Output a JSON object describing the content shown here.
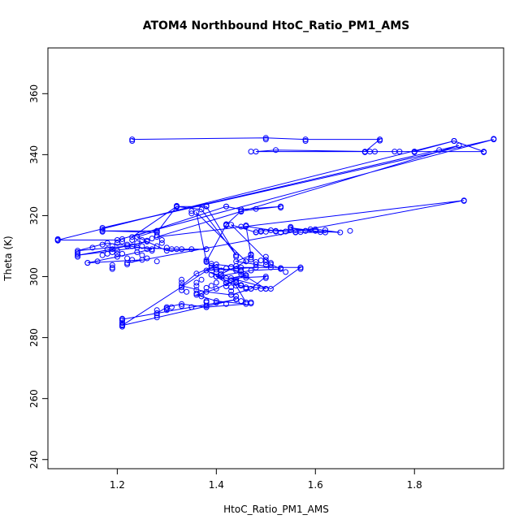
{
  "chart_data": {
    "type": "scatter",
    "title": "ATOM4 Northbound HtoC_Ratio_PM1_AMS",
    "xlabel": "HtoC_Ratio_PM1_AMS",
    "ylabel": "Theta (K)",
    "xlim": [
      1.06,
      1.98
    ],
    "ylim": [
      237,
      375
    ],
    "xticks": [
      1.2,
      1.4,
      1.6,
      1.8
    ],
    "yticks": [
      240,
      260,
      280,
      300,
      320,
      340,
      360
    ],
    "grid": false,
    "legend": "none",
    "series_color": "#0000ff",
    "series": [
      {
        "style": "lines+points",
        "points": [
          [
            1.23,
            345
          ],
          [
            1.5,
            345.5
          ],
          [
            1.58,
            345
          ],
          [
            1.73,
            345
          ],
          [
            1.7,
            341
          ],
          [
            1.48,
            341
          ],
          [
            1.52,
            341.5
          ],
          [
            1.72,
            341
          ],
          [
            1.76,
            341
          ],
          [
            1.8,
            341
          ],
          [
            1.88,
            344.5
          ],
          [
            1.94,
            341
          ],
          [
            1.8,
            341
          ],
          [
            1.88,
            344.5
          ],
          [
            1.08,
            312
          ],
          [
            1.2,
            312
          ],
          [
            1.96,
            345
          ],
          [
            1.17,
            316
          ],
          [
            1.89,
            343
          ],
          [
            1.28,
            313
          ],
          [
            1.9,
            325
          ],
          [
            1.22,
            304.5
          ],
          [
            1.25,
            305.5
          ],
          [
            1.14,
            304.5
          ],
          [
            1.2,
            306.5
          ],
          [
            1.27,
            309
          ],
          [
            1.18,
            311
          ],
          [
            1.12,
            308.5
          ],
          [
            1.22,
            310
          ],
          [
            1.26,
            311.5
          ],
          [
            1.19,
            309
          ],
          [
            1.12,
            307
          ],
          [
            1.24,
            309.5
          ],
          [
            1.32,
            309
          ],
          [
            1.38,
            309
          ],
          [
            1.3,
            308.5
          ],
          [
            1.24,
            313
          ],
          [
            1.28,
            315
          ],
          [
            1.17,
            315
          ],
          [
            1.28,
            314.5
          ],
          [
            1.32,
            323
          ],
          [
            1.38,
            323
          ],
          [
            1.44,
            307
          ],
          [
            1.37,
            322
          ],
          [
            1.32,
            323
          ],
          [
            1.23,
            313
          ],
          [
            1.42,
            323
          ],
          [
            1.45,
            322
          ],
          [
            1.53,
            323
          ],
          [
            1.45,
            321.5
          ],
          [
            1.42,
            317
          ],
          [
            1.38,
            305
          ],
          [
            1.36,
            321
          ],
          [
            1.46,
            305
          ],
          [
            1.4,
            300
          ],
          [
            1.42,
            298
          ],
          [
            1.45,
            297
          ],
          [
            1.5,
            296
          ],
          [
            1.44,
            302
          ],
          [
            1.39,
            303
          ],
          [
            1.36,
            301
          ],
          [
            1.33,
            297
          ],
          [
            1.38,
            295
          ],
          [
            1.43,
            294
          ],
          [
            1.47,
            296
          ],
          [
            1.5,
            300
          ],
          [
            1.43,
            299.5
          ],
          [
            1.46,
            300.5
          ],
          [
            1.4,
            296
          ],
          [
            1.36,
            294
          ],
          [
            1.4,
            292
          ],
          [
            1.46,
            291
          ],
          [
            1.38,
            290
          ],
          [
            1.33,
            291
          ],
          [
            1.3,
            290
          ],
          [
            1.28,
            288
          ],
          [
            1.21,
            286
          ],
          [
            1.35,
            290
          ],
          [
            1.44,
            292.5
          ],
          [
            1.21,
            284
          ],
          [
            1.4,
            304
          ],
          [
            1.45,
            303
          ],
          [
            1.51,
            303
          ],
          [
            1.48,
            304
          ],
          [
            1.44,
            305
          ],
          [
            1.47,
            307
          ],
          [
            1.46,
            316.5
          ],
          [
            1.52,
            315
          ],
          [
            1.56,
            314.5
          ],
          [
            1.62,
            314.5
          ],
          [
            1.55,
            316
          ],
          [
            1.58,
            315
          ],
          [
            1.65,
            314.5
          ],
          [
            1.6,
            315.5
          ],
          [
            1.49,
            315
          ],
          [
            1.48,
            314.5
          ],
          [
            1.43,
            317
          ],
          [
            1.51,
            304
          ],
          [
            1.53,
            302.5
          ],
          [
            1.47,
            302
          ],
          [
            1.4,
            300
          ],
          [
            1.44,
            299
          ],
          [
            1.51,
            296
          ],
          [
            1.57,
            303
          ],
          [
            1.48,
            303
          ],
          [
            1.38,
            302
          ],
          [
            1.44,
            297
          ],
          [
            1.46,
            291.5
          ]
        ]
      },
      {
        "style": "points",
        "points": [
          [
            1.23,
            344.5
          ],
          [
            1.5,
            345
          ],
          [
            1.58,
            344.5
          ],
          [
            1.73,
            344.6
          ],
          [
            1.7,
            340.8
          ],
          [
            1.71,
            341
          ],
          [
            1.47,
            341
          ],
          [
            1.77,
            341
          ],
          [
            1.8,
            340.8
          ],
          [
            1.94,
            340.8
          ],
          [
            1.96,
            345.2
          ],
          [
            1.88,
            344.5
          ],
          [
            1.08,
            312.3
          ],
          [
            1.08,
            311.8
          ],
          [
            1.9,
            324.8
          ],
          [
            1.85,
            341.5
          ],
          [
            1.67,
            315
          ],
          [
            1.2,
            311
          ],
          [
            1.21,
            311.5
          ],
          [
            1.22,
            310.5
          ],
          [
            1.23,
            310
          ],
          [
            1.24,
            311
          ],
          [
            1.25,
            310
          ],
          [
            1.26,
            309
          ],
          [
            1.19,
            310
          ],
          [
            1.2,
            308.5
          ],
          [
            1.21,
            307.5
          ],
          [
            1.22,
            306
          ],
          [
            1.23,
            305.5
          ],
          [
            1.22,
            304
          ],
          [
            1.19,
            303
          ],
          [
            1.19,
            302.5
          ],
          [
            1.19,
            303.8
          ],
          [
            1.16,
            305
          ],
          [
            1.14,
            304.5
          ],
          [
            1.17,
            307
          ],
          [
            1.18,
            307.5
          ],
          [
            1.12,
            307.5
          ],
          [
            1.12,
            306.5
          ],
          [
            1.12,
            308
          ],
          [
            1.15,
            309.5
          ],
          [
            1.17,
            310.5
          ],
          [
            1.18,
            309
          ],
          [
            1.19,
            308
          ],
          [
            1.2,
            307.5
          ],
          [
            1.24,
            308
          ],
          [
            1.25,
            307
          ],
          [
            1.26,
            306
          ],
          [
            1.28,
            305
          ],
          [
            1.27,
            308.5
          ],
          [
            1.28,
            310
          ],
          [
            1.29,
            311
          ],
          [
            1.3,
            309.5
          ],
          [
            1.31,
            309
          ],
          [
            1.33,
            309
          ],
          [
            1.35,
            309
          ],
          [
            1.38,
            309
          ],
          [
            1.21,
            312.3
          ],
          [
            1.23,
            312
          ],
          [
            1.24,
            313
          ],
          [
            1.25,
            312
          ],
          [
            1.26,
            311.8
          ],
          [
            1.27,
            312.5
          ],
          [
            1.28,
            313.5
          ],
          [
            1.29,
            312
          ],
          [
            1.17,
            315.5
          ],
          [
            1.17,
            314.7
          ],
          [
            1.28,
            314.5
          ],
          [
            1.28,
            315
          ],
          [
            1.32,
            323.2
          ],
          [
            1.32,
            322.8
          ],
          [
            1.35,
            321.5
          ],
          [
            1.35,
            320.7
          ],
          [
            1.38,
            323.2
          ],
          [
            1.42,
            323
          ],
          [
            1.45,
            322
          ],
          [
            1.45,
            321.3
          ],
          [
            1.48,
            322.2
          ],
          [
            1.53,
            323
          ],
          [
            1.53,
            322.6
          ],
          [
            1.42,
            316.8
          ],
          [
            1.42,
            317.2
          ],
          [
            1.44,
            307
          ],
          [
            1.44,
            306.5
          ],
          [
            1.46,
            305
          ],
          [
            1.47,
            307.3
          ],
          [
            1.47,
            306.3
          ],
          [
            1.47,
            305.6
          ],
          [
            1.48,
            304.8
          ],
          [
            1.49,
            305.3
          ],
          [
            1.5,
            304.8
          ],
          [
            1.5,
            305.5
          ],
          [
            1.5,
            306.5
          ],
          [
            1.5,
            303.8
          ],
          [
            1.51,
            304.5
          ],
          [
            1.53,
            302.8
          ],
          [
            1.54,
            301.5
          ],
          [
            1.57,
            303
          ],
          [
            1.57,
            302.5
          ],
          [
            1.48,
            314.6
          ],
          [
            1.49,
            314.7
          ],
          [
            1.5,
            314.7
          ],
          [
            1.51,
            315.2
          ],
          [
            1.52,
            314.8
          ],
          [
            1.53,
            314.5
          ],
          [
            1.54,
            314.8
          ],
          [
            1.55,
            315.5
          ],
          [
            1.55,
            316.3
          ],
          [
            1.56,
            314.6
          ],
          [
            1.57,
            314.6
          ],
          [
            1.58,
            315
          ],
          [
            1.59,
            315.5
          ],
          [
            1.6,
            315
          ],
          [
            1.61,
            314.6
          ],
          [
            1.62,
            315.3
          ],
          [
            1.46,
            316.8
          ],
          [
            1.45,
            316.4
          ],
          [
            1.38,
            305.5
          ],
          [
            1.38,
            304.8
          ],
          [
            1.39,
            304.2
          ],
          [
            1.39,
            303.5
          ],
          [
            1.4,
            303
          ],
          [
            1.4,
            302.3
          ],
          [
            1.4,
            301.5
          ],
          [
            1.41,
            300.8
          ],
          [
            1.41,
            300
          ],
          [
            1.42,
            299.5
          ],
          [
            1.43,
            298.8
          ],
          [
            1.44,
            298.5
          ],
          [
            1.44,
            298
          ],
          [
            1.45,
            297.3
          ],
          [
            1.46,
            296.5
          ],
          [
            1.46,
            296
          ],
          [
            1.47,
            296
          ],
          [
            1.48,
            296.5
          ],
          [
            1.49,
            296
          ],
          [
            1.5,
            296
          ],
          [
            1.5,
            299.5
          ],
          [
            1.44,
            303.5
          ],
          [
            1.44,
            302.5
          ],
          [
            1.45,
            302
          ],
          [
            1.45,
            301.5
          ],
          [
            1.45,
            300.8
          ],
          [
            1.46,
            300.2
          ],
          [
            1.46,
            299.6
          ],
          [
            1.43,
            303.2
          ],
          [
            1.42,
            302.7
          ],
          [
            1.41,
            302
          ],
          [
            1.4,
            301.4
          ],
          [
            1.39,
            300.6
          ],
          [
            1.37,
            299
          ],
          [
            1.36,
            298
          ],
          [
            1.36,
            297
          ],
          [
            1.33,
            299
          ],
          [
            1.33,
            298
          ],
          [
            1.33,
            296.5
          ],
          [
            1.33,
            295.5
          ],
          [
            1.34,
            295
          ],
          [
            1.37,
            294.5
          ],
          [
            1.38,
            296.3
          ],
          [
            1.39,
            297
          ],
          [
            1.4,
            298
          ],
          [
            1.42,
            297.8
          ],
          [
            1.42,
            296.8
          ],
          [
            1.43,
            296.5
          ],
          [
            1.43,
            295.3
          ],
          [
            1.43,
            294
          ],
          [
            1.44,
            293.5
          ],
          [
            1.44,
            292.6
          ],
          [
            1.45,
            292
          ],
          [
            1.46,
            291.5
          ],
          [
            1.47,
            291.2
          ],
          [
            1.47,
            291.6
          ],
          [
            1.42,
            291
          ],
          [
            1.4,
            291.4
          ],
          [
            1.38,
            291.6
          ],
          [
            1.38,
            290.5
          ],
          [
            1.38,
            290
          ],
          [
            1.38,
            292
          ],
          [
            1.37,
            293.5
          ],
          [
            1.36,
            294.5
          ],
          [
            1.36,
            295.6
          ],
          [
            1.33,
            290.4
          ],
          [
            1.31,
            290
          ],
          [
            1.3,
            289.6
          ],
          [
            1.3,
            289
          ],
          [
            1.28,
            289
          ],
          [
            1.28,
            288
          ],
          [
            1.28,
            287.3
          ],
          [
            1.28,
            286.6
          ],
          [
            1.21,
            286.2
          ],
          [
            1.21,
            285.5
          ],
          [
            1.21,
            284.8
          ],
          [
            1.21,
            284.2
          ],
          [
            1.21,
            283.6
          ]
        ]
      }
    ]
  }
}
